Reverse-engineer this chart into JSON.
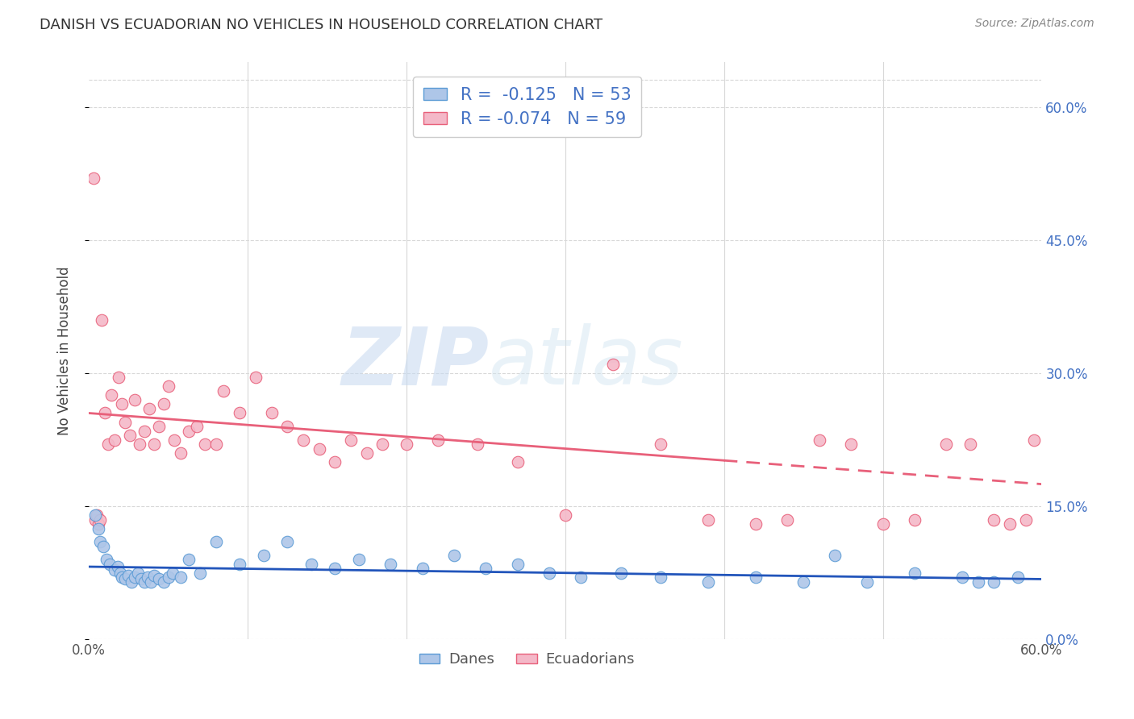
{
  "title": "DANISH VS ECUADORIAN NO VEHICLES IN HOUSEHOLD CORRELATION CHART",
  "source": "Source: ZipAtlas.com",
  "ylabel": "No Vehicles in Household",
  "ytick_labels": [
    "0.0%",
    "15.0%",
    "30.0%",
    "45.0%",
    "60.0%"
  ],
  "ytick_values": [
    0.0,
    15.0,
    30.0,
    45.0,
    60.0
  ],
  "xlim": [
    0.0,
    60.0
  ],
  "ylim": [
    0.0,
    65.0
  ],
  "danes_color": "#aec6e8",
  "danes_edge_color": "#5b9bd5",
  "ecuadorians_color": "#f4b8c8",
  "ecuadorians_edge_color": "#e8607a",
  "danes_R": "-0.125",
  "danes_N": "53",
  "ecuadorians_R": "-0.074",
  "ecuadorians_N": "59",
  "watermark_zip": "ZIP",
  "watermark_atlas": "atlas",
  "danes_line_color": "#2255bb",
  "ecuadorians_line_color": "#e8607a",
  "legend_label_danes": "Danes",
  "legend_label_ecuadorians": "Ecuadorians",
  "danes_line_x0": 0.0,
  "danes_line_x1": 60.0,
  "danes_line_y0": 8.2,
  "danes_line_y1": 6.8,
  "ecu_line_x0": 0.0,
  "ecu_line_x1": 60.0,
  "ecu_line_y0": 25.5,
  "ecu_line_y1": 17.5,
  "danes_scatter_x": [
    0.4,
    0.6,
    0.7,
    0.9,
    1.1,
    1.3,
    1.6,
    1.8,
    2.0,
    2.1,
    2.3,
    2.5,
    2.7,
    2.9,
    3.1,
    3.3,
    3.5,
    3.7,
    3.9,
    4.1,
    4.4,
    4.7,
    5.0,
    5.3,
    5.8,
    6.3,
    7.0,
    8.0,
    9.5,
    11.0,
    12.5,
    14.0,
    15.5,
    17.0,
    19.0,
    21.0,
    23.0,
    25.0,
    27.0,
    29.0,
    31.0,
    33.5,
    36.0,
    39.0,
    42.0,
    45.0,
    47.0,
    49.0,
    52.0,
    55.0,
    57.0,
    58.5,
    56.0
  ],
  "danes_scatter_y": [
    14.0,
    12.5,
    11.0,
    10.5,
    9.0,
    8.5,
    7.8,
    8.2,
    7.5,
    7.0,
    6.8,
    7.2,
    6.5,
    7.0,
    7.5,
    6.8,
    6.5,
    7.0,
    6.5,
    7.2,
    6.8,
    6.5,
    7.0,
    7.5,
    7.0,
    9.0,
    7.5,
    11.0,
    8.5,
    9.5,
    11.0,
    8.5,
    8.0,
    9.0,
    8.5,
    8.0,
    9.5,
    8.0,
    8.5,
    7.5,
    7.0,
    7.5,
    7.0,
    6.5,
    7.0,
    6.5,
    9.5,
    6.5,
    7.5,
    7.0,
    6.5,
    7.0,
    6.5
  ],
  "ecuadorians_scatter_x": [
    0.3,
    0.4,
    0.5,
    0.6,
    0.7,
    0.8,
    1.0,
    1.2,
    1.4,
    1.6,
    1.9,
    2.1,
    2.3,
    2.6,
    2.9,
    3.2,
    3.5,
    3.8,
    4.1,
    4.4,
    4.7,
    5.0,
    5.4,
    5.8,
    6.3,
    6.8,
    7.3,
    8.0,
    8.5,
    9.5,
    10.5,
    11.5,
    12.5,
    13.5,
    14.5,
    15.5,
    16.5,
    17.5,
    18.5,
    20.0,
    22.0,
    24.5,
    27.0,
    30.0,
    33.0,
    36.0,
    39.0,
    42.0,
    44.0,
    46.0,
    48.0,
    50.0,
    52.0,
    54.0,
    55.5,
    57.0,
    58.0,
    59.0,
    59.5
  ],
  "ecuadorians_scatter_y": [
    52.0,
    13.5,
    14.0,
    13.0,
    13.5,
    36.0,
    25.5,
    22.0,
    27.5,
    22.5,
    29.5,
    26.5,
    24.5,
    23.0,
    27.0,
    22.0,
    23.5,
    26.0,
    22.0,
    24.0,
    26.5,
    28.5,
    22.5,
    21.0,
    23.5,
    24.0,
    22.0,
    22.0,
    28.0,
    25.5,
    29.5,
    25.5,
    24.0,
    22.5,
    21.5,
    20.0,
    22.5,
    21.0,
    22.0,
    22.0,
    22.5,
    22.0,
    20.0,
    14.0,
    31.0,
    22.0,
    13.5,
    13.0,
    13.5,
    22.5,
    22.0,
    13.0,
    13.5,
    22.0,
    22.0,
    13.5,
    13.0,
    13.5,
    22.5
  ],
  "background_color": "#ffffff",
  "grid_color": "#d8d8d8"
}
